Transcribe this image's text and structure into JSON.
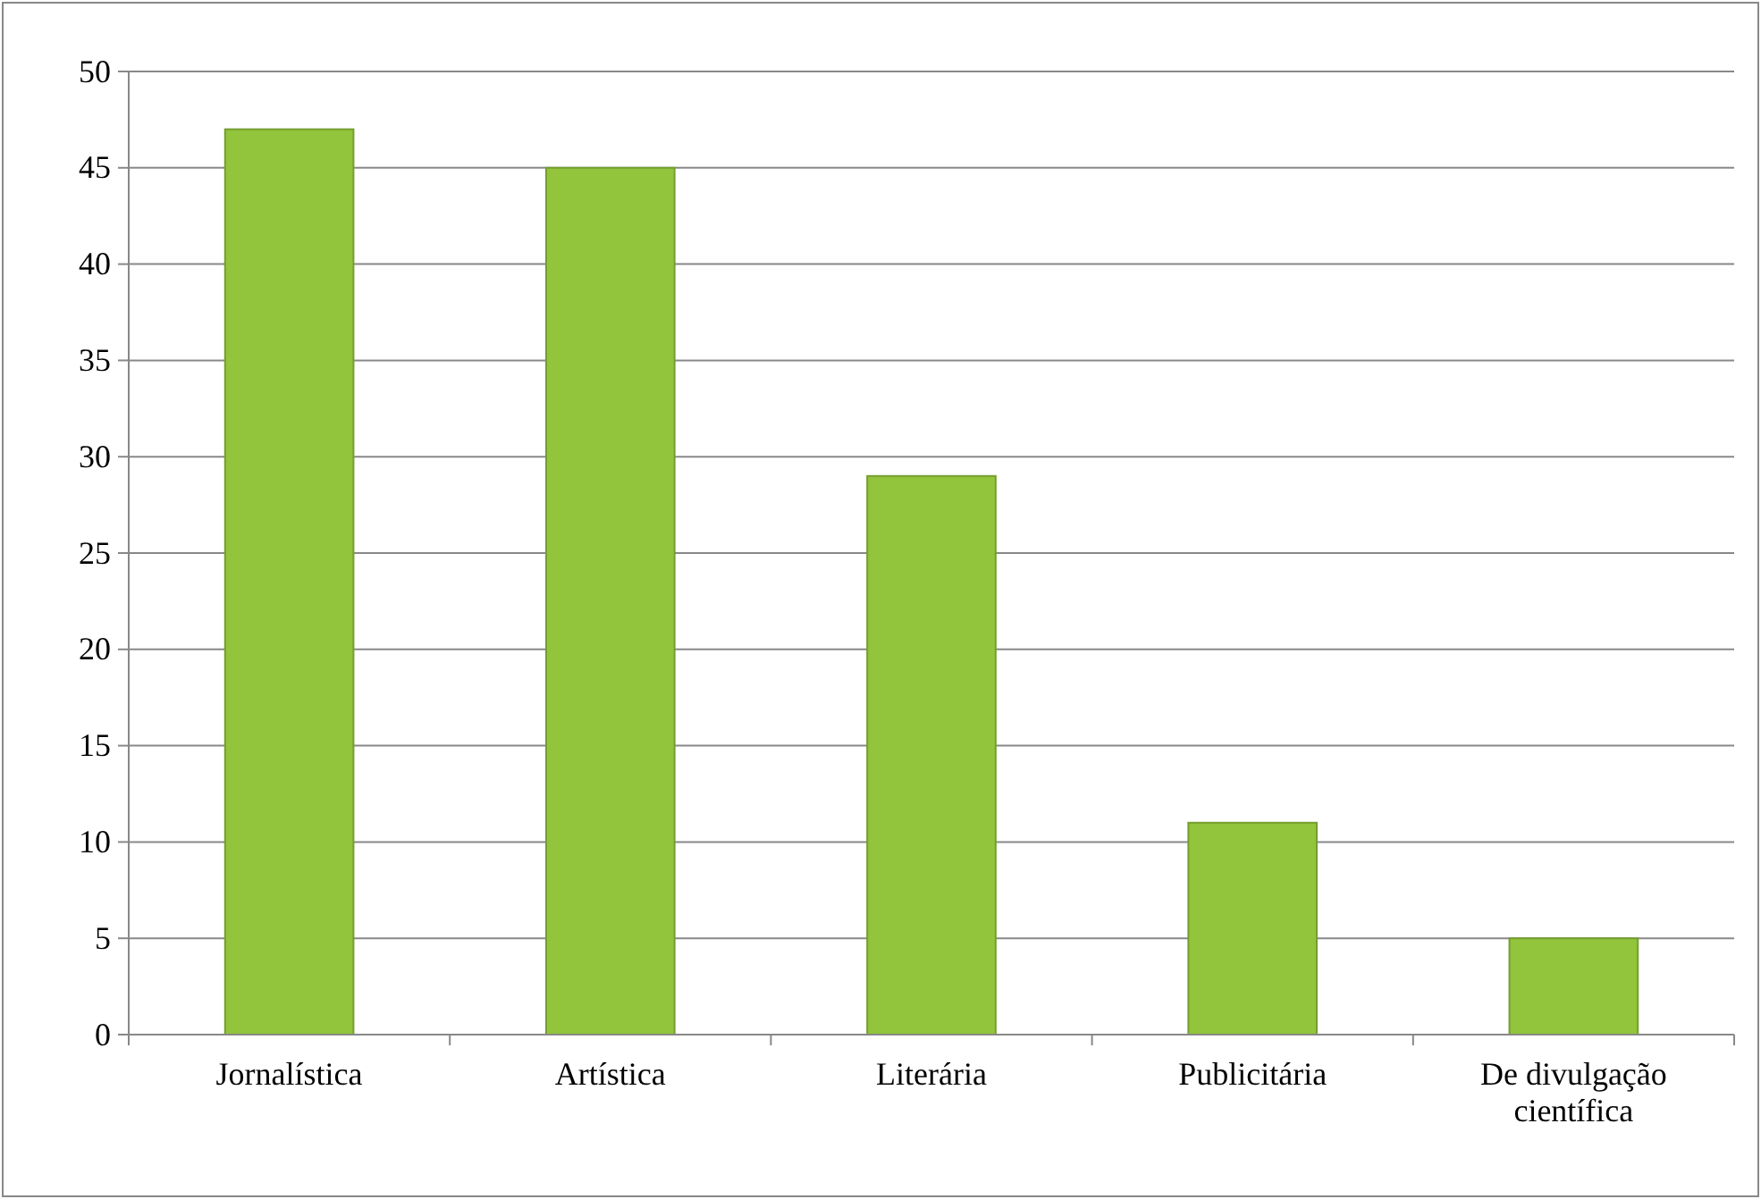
{
  "chart_data": {
    "type": "bar",
    "categories": [
      "Jornalística",
      "Artística",
      "Literária",
      "Publicitária",
      "De divulgação científica"
    ],
    "series": [
      {
        "color": "#92c43c",
        "values": [
          47,
          45,
          29,
          11,
          5
        ]
      }
    ],
    "ylim": [
      0,
      50
    ],
    "yticks": [
      0,
      5,
      10,
      15,
      20,
      25,
      30,
      35,
      40,
      45,
      50
    ],
    "grid": "y"
  }
}
